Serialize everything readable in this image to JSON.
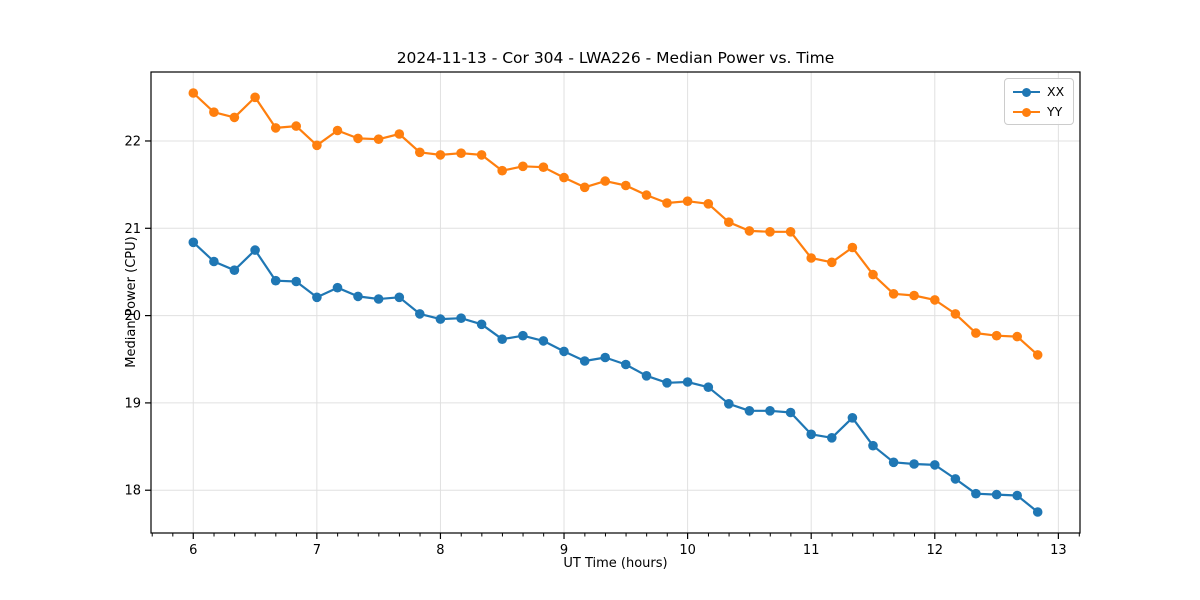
{
  "chart_data": {
    "type": "line",
    "title": "2024-11-13 - Cor 304 - LWA226 - Median Power vs. Time",
    "xlabel": "UT Time (hours)",
    "ylabel": "Median Power (CPU)",
    "xlim": [
      5.658,
      13.175
    ],
    "ylim": [
      17.51,
      22.79
    ],
    "x_ticks": [
      6,
      7,
      8,
      9,
      10,
      11,
      12,
      13
    ],
    "y_ticks": [
      18,
      19,
      20,
      21,
      22
    ],
    "x_minor_step": 0.1667,
    "grid": true,
    "grid_color": "#e0e0e0",
    "legend_position": "upper right",
    "x": [
      6.0,
      6.167,
      6.333,
      6.5,
      6.667,
      6.833,
      7.0,
      7.167,
      7.333,
      7.5,
      7.667,
      7.833,
      8.0,
      8.167,
      8.333,
      8.5,
      8.667,
      8.833,
      9.0,
      9.167,
      9.333,
      9.5,
      9.667,
      9.833,
      10.0,
      10.167,
      10.333,
      10.5,
      10.667,
      10.833,
      11.0,
      11.167,
      11.333,
      11.5,
      11.667,
      11.833,
      12.0,
      12.167,
      12.333,
      12.5,
      12.667,
      12.833
    ],
    "series": [
      {
        "name": "XX",
        "color": "#1f77b4",
        "values": [
          20.84,
          20.62,
          20.52,
          20.75,
          20.4,
          20.39,
          20.21,
          20.32,
          20.22,
          20.19,
          20.21,
          20.02,
          19.96,
          19.97,
          19.9,
          19.73,
          19.77,
          19.71,
          19.59,
          19.48,
          19.52,
          19.44,
          19.31,
          19.23,
          19.24,
          19.18,
          18.99,
          18.91,
          18.91,
          18.89,
          18.64,
          18.6,
          18.83,
          18.51,
          18.32,
          18.3,
          18.29,
          18.13,
          17.96,
          17.95,
          17.94,
          17.75
        ]
      },
      {
        "name": "YY",
        "color": "#ff7f0e",
        "values": [
          22.55,
          22.33,
          22.27,
          22.5,
          22.15,
          22.17,
          21.95,
          22.12,
          22.03,
          22.02,
          22.08,
          21.87,
          21.84,
          21.86,
          21.84,
          21.66,
          21.71,
          21.7,
          21.58,
          21.47,
          21.54,
          21.49,
          21.38,
          21.29,
          21.31,
          21.28,
          21.07,
          20.97,
          20.96,
          20.96,
          20.66,
          20.61,
          20.78,
          20.47,
          20.25,
          20.23,
          20.18,
          20.02,
          19.8,
          19.77,
          19.76,
          19.55
        ]
      }
    ]
  }
}
